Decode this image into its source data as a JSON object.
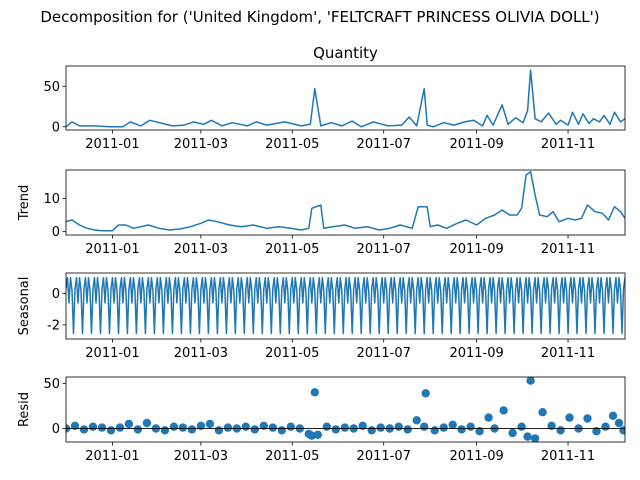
{
  "figure": {
    "suptitle": "Decomposition for ('United Kingdom', 'FELTCRAFT PRINCESS OLIVIA DOLL')",
    "line_color": "#1f77b4"
  },
  "chart_data": [
    {
      "type": "line",
      "title": "Quantity",
      "ylabel": "",
      "x_range": [
        "2010-12-01",
        "2011-12-09"
      ],
      "xticks": [
        "2011-01",
        "2011-03",
        "2011-05",
        "2011-07",
        "2011-09",
        "2011-11"
      ],
      "ylim": [
        -4,
        75
      ],
      "yticks": [
        0,
        50
      ],
      "x": [
        "2010-12-01",
        "2010-12-05",
        "2010-12-10",
        "2010-12-20",
        "2010-12-30",
        "2011-01-08",
        "2011-01-13",
        "2011-01-20",
        "2011-01-26",
        "2011-02-10",
        "2011-02-18",
        "2011-02-24",
        "2011-03-03",
        "2011-03-08",
        "2011-03-15",
        "2011-03-22",
        "2011-04-01",
        "2011-04-07",
        "2011-04-14",
        "2011-04-26",
        "2011-05-07",
        "2011-05-13",
        "2011-05-16",
        "2011-05-20",
        "2011-05-27",
        "2011-06-03",
        "2011-06-10",
        "2011-06-16",
        "2011-06-24",
        "2011-07-04",
        "2011-07-13",
        "2011-07-18",
        "2011-07-23",
        "2011-07-28",
        "2011-07-30",
        "2011-08-03",
        "2011-08-10",
        "2011-08-17",
        "2011-08-24",
        "2011-08-30",
        "2011-09-05",
        "2011-09-08",
        "2011-09-12",
        "2011-09-18",
        "2011-09-22",
        "2011-09-27",
        "2011-10-02",
        "2011-10-05",
        "2011-10-07",
        "2011-10-10",
        "2011-10-14",
        "2011-10-19",
        "2011-10-24",
        "2011-10-27",
        "2011-11-01",
        "2011-11-04",
        "2011-11-08",
        "2011-11-11",
        "2011-11-15",
        "2011-11-18",
        "2011-11-22",
        "2011-11-25",
        "2011-11-29",
        "2011-12-02",
        "2011-12-06",
        "2011-12-09"
      ],
      "values": [
        0,
        6,
        1,
        1,
        0,
        0,
        6,
        1,
        8,
        1,
        2,
        6,
        3,
        8,
        1,
        5,
        1,
        6,
        2,
        6,
        1,
        3,
        47,
        1,
        5,
        1,
        7,
        0,
        6,
        1,
        2,
        12,
        1,
        47,
        2,
        0,
        5,
        2,
        6,
        8,
        1,
        14,
        2,
        27,
        3,
        11,
        5,
        20,
        70,
        10,
        6,
        17,
        3,
        8,
        2,
        18,
        3,
        16,
        4,
        10,
        6,
        14,
        3,
        18,
        6,
        10
      ]
    },
    {
      "type": "line",
      "title": "",
      "ylabel": "Trend",
      "x_range": [
        "2010-12-01",
        "2011-12-09"
      ],
      "xticks": [
        "2011-01",
        "2011-03",
        "2011-05",
        "2011-07",
        "2011-09",
        "2011-11"
      ],
      "ylim": [
        -1,
        18.5
      ],
      "yticks": [
        0,
        10
      ],
      "x": [
        "2010-12-01",
        "2010-12-05",
        "2010-12-10",
        "2010-12-15",
        "2010-12-20",
        "2010-12-25",
        "2011-01-01",
        "2011-01-05",
        "2011-01-10",
        "2011-01-15",
        "2011-01-20",
        "2011-01-25",
        "2011-02-01",
        "2011-02-08",
        "2011-02-15",
        "2011-02-22",
        "2011-03-01",
        "2011-03-06",
        "2011-03-12",
        "2011-03-20",
        "2011-03-28",
        "2011-04-05",
        "2011-04-14",
        "2011-04-22",
        "2011-04-30",
        "2011-05-07",
        "2011-05-12",
        "2011-05-14",
        "2011-05-20",
        "2011-05-22",
        "2011-05-28",
        "2011-06-05",
        "2011-06-12",
        "2011-06-20",
        "2011-06-28",
        "2011-07-05",
        "2011-07-12",
        "2011-07-20",
        "2011-07-24",
        "2011-07-30",
        "2011-08-01",
        "2011-08-06",
        "2011-08-12",
        "2011-08-19",
        "2011-08-25",
        "2011-09-01",
        "2011-09-07",
        "2011-09-13",
        "2011-09-18",
        "2011-09-23",
        "2011-09-28",
        "2011-10-01",
        "2011-10-04",
        "2011-10-07",
        "2011-10-10",
        "2011-10-13",
        "2011-10-18",
        "2011-10-22",
        "2011-10-26",
        "2011-11-01",
        "2011-11-06",
        "2011-11-10",
        "2011-11-14",
        "2011-11-19",
        "2011-11-24",
        "2011-11-28",
        "2011-12-02",
        "2011-12-06",
        "2011-12-09"
      ],
      "values": [
        3,
        3.5,
        2,
        1,
        0.5,
        0.3,
        0.3,
        2,
        2,
        1,
        1.5,
        2,
        1,
        0.5,
        0.8,
        1.5,
        2.5,
        3.5,
        3,
        2,
        1.5,
        2,
        1,
        1.5,
        1,
        0.5,
        1,
        7,
        8,
        1,
        1.5,
        2,
        1,
        1.5,
        0.5,
        1,
        2,
        1,
        7.5,
        7.5,
        1.5,
        2,
        1,
        2.5,
        3.5,
        2,
        4,
        5,
        6.5,
        5,
        5,
        7,
        17,
        18,
        11,
        5,
        4.5,
        6,
        3,
        4,
        3.5,
        4,
        8,
        6,
        5.5,
        3.5,
        7.5,
        6,
        4
      ]
    },
    {
      "type": "line",
      "title": "",
      "ylabel": "Seasonal",
      "x_range": [
        "2010-12-01",
        "2011-12-09"
      ],
      "xticks": [
        "2011-01",
        "2011-03",
        "2011-05",
        "2011-07",
        "2011-09",
        "2011-11"
      ],
      "ylim": [
        -2.9,
        1.3
      ],
      "yticks": [
        -2,
        0
      ],
      "periodic_cycle": [
        0.3,
        1.0,
        -0.6,
        1.0,
        0.2,
        -2.55
      ],
      "x_start": "2010-12-01",
      "x_end": "2011-12-09"
    },
    {
      "type": "scatter",
      "title": "",
      "ylabel": "Resid",
      "x_range": [
        "2010-12-01",
        "2011-12-09"
      ],
      "xticks": [
        "2011-01",
        "2011-03",
        "2011-05",
        "2011-07",
        "2011-09",
        "2011-11"
      ],
      "ylim": [
        -15,
        57
      ],
      "yticks": [
        0,
        50
      ],
      "x": [
        "2010-12-01",
        "2010-12-07",
        "2010-12-13",
        "2010-12-19",
        "2010-12-25",
        "2010-12-31",
        "2011-01-06",
        "2011-01-12",
        "2011-01-18",
        "2011-01-24",
        "2011-01-30",
        "2011-02-05",
        "2011-02-11",
        "2011-02-17",
        "2011-02-23",
        "2011-03-01",
        "2011-03-07",
        "2011-03-13",
        "2011-03-19",
        "2011-03-25",
        "2011-03-31",
        "2011-04-06",
        "2011-04-12",
        "2011-04-18",
        "2011-04-24",
        "2011-04-30",
        "2011-05-06",
        "2011-05-12",
        "2011-05-14",
        "2011-05-16",
        "2011-05-18",
        "2011-05-24",
        "2011-05-30",
        "2011-06-05",
        "2011-06-11",
        "2011-06-17",
        "2011-06-23",
        "2011-06-29",
        "2011-07-05",
        "2011-07-11",
        "2011-07-17",
        "2011-07-23",
        "2011-07-28",
        "2011-07-29",
        "2011-08-04",
        "2011-08-10",
        "2011-08-16",
        "2011-08-22",
        "2011-08-28",
        "2011-09-03",
        "2011-09-09",
        "2011-09-13",
        "2011-09-19",
        "2011-09-25",
        "2011-10-01",
        "2011-10-05",
        "2011-10-07",
        "2011-10-10",
        "2011-10-15",
        "2011-10-21",
        "2011-10-27",
        "2011-11-02",
        "2011-11-08",
        "2011-11-14",
        "2011-11-20",
        "2011-11-26",
        "2011-12-01",
        "2011-12-05",
        "2011-12-08"
      ],
      "values": [
        0,
        3,
        -1,
        2,
        1,
        -2,
        1,
        5,
        -1,
        6,
        0,
        -2,
        2,
        1,
        -1,
        3,
        5,
        -2,
        1,
        0,
        2,
        -1,
        3,
        1,
        -2,
        2,
        0,
        -6,
        -8,
        40,
        -7,
        2,
        -1,
        1,
        0,
        3,
        -2,
        1,
        0,
        2,
        -1,
        9,
        2,
        39,
        -2,
        1,
        4,
        -1,
        2,
        -3,
        12,
        0,
        20,
        -5,
        2,
        -9,
        53,
        -11,
        18,
        3,
        -2,
        12,
        0,
        11,
        -3,
        2,
        14,
        6,
        -2
      ]
    }
  ]
}
